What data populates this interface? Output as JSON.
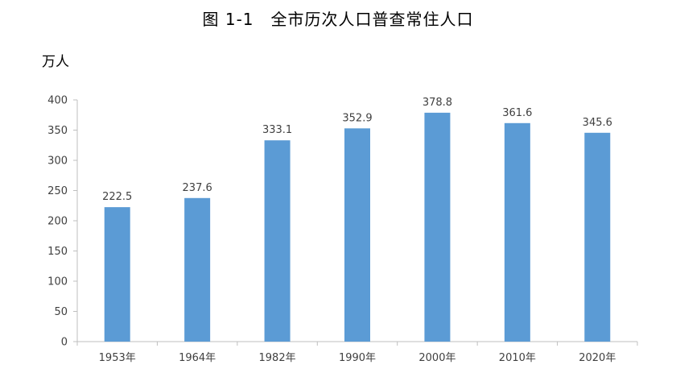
{
  "chart_data": {
    "type": "bar",
    "title": "图 1-1　全市历次人口普查常住人口",
    "ylabel": "万人",
    "xlabel": "",
    "categories": [
      "1953年",
      "1964年",
      "1982年",
      "1990年",
      "2000年",
      "2010年",
      "2020年"
    ],
    "values": [
      222.5,
      237.6,
      333.1,
      352.9,
      378.8,
      361.6,
      345.6
    ],
    "ylim": [
      0,
      400
    ],
    "yticks": [
      0,
      50,
      100,
      150,
      200,
      250,
      300,
      350,
      400
    ],
    "grid": false,
    "legend": "none",
    "bar_color": "#5b9bd5"
  }
}
